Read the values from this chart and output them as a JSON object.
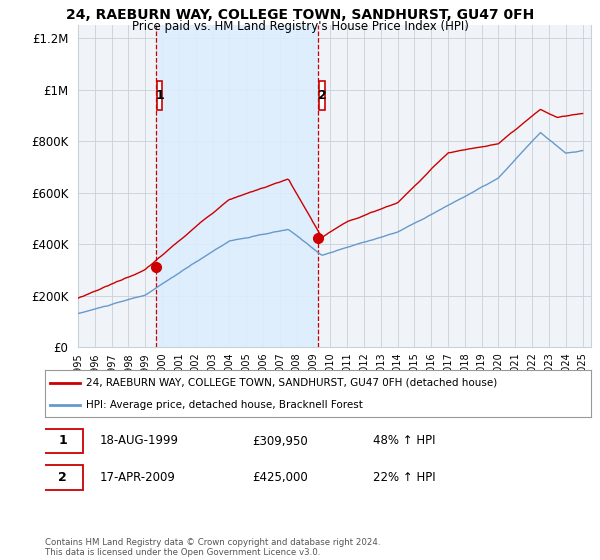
{
  "title1": "24, RAEBURN WAY, COLLEGE TOWN, SANDHURST, GU47 0FH",
  "title2": "Price paid vs. HM Land Registry's House Price Index (HPI)",
  "legend_line1": "24, RAEBURN WAY, COLLEGE TOWN, SANDHURST, GU47 0FH (detached house)",
  "legend_line2": "HPI: Average price, detached house, Bracknell Forest",
  "transaction1_label": "1",
  "transaction1_date": "18-AUG-1999",
  "transaction1_price": "£309,950",
  "transaction1_hpi": "48% ↑ HPI",
  "transaction1_year": 1999.62,
  "transaction1_value": 309950,
  "transaction2_label": "2",
  "transaction2_date": "17-APR-2009",
  "transaction2_price": "£425,000",
  "transaction2_hpi": "22% ↑ HPI",
  "transaction2_year": 2009.29,
  "transaction2_value": 425000,
  "red_color": "#cc0000",
  "blue_color": "#6699cc",
  "shade_color": "#ddeeff",
  "vline_color": "#cc0000",
  "bg_color": "#f0f4f8",
  "grid_color": "#c8d0d8",
  "ylim_min": 0,
  "ylim_max": 1250000,
  "xlim_min": 1995.0,
  "xlim_max": 2025.5,
  "footer_text": "Contains HM Land Registry data © Crown copyright and database right 2024.\nThis data is licensed under the Open Government Licence v3.0.",
  "yticks": [
    0,
    200000,
    400000,
    600000,
    800000,
    1000000,
    1200000
  ],
  "ytick_labels": [
    "£0",
    "£200K",
    "£400K",
    "£600K",
    "£800K",
    "£1M",
    "£1.2M"
  ]
}
